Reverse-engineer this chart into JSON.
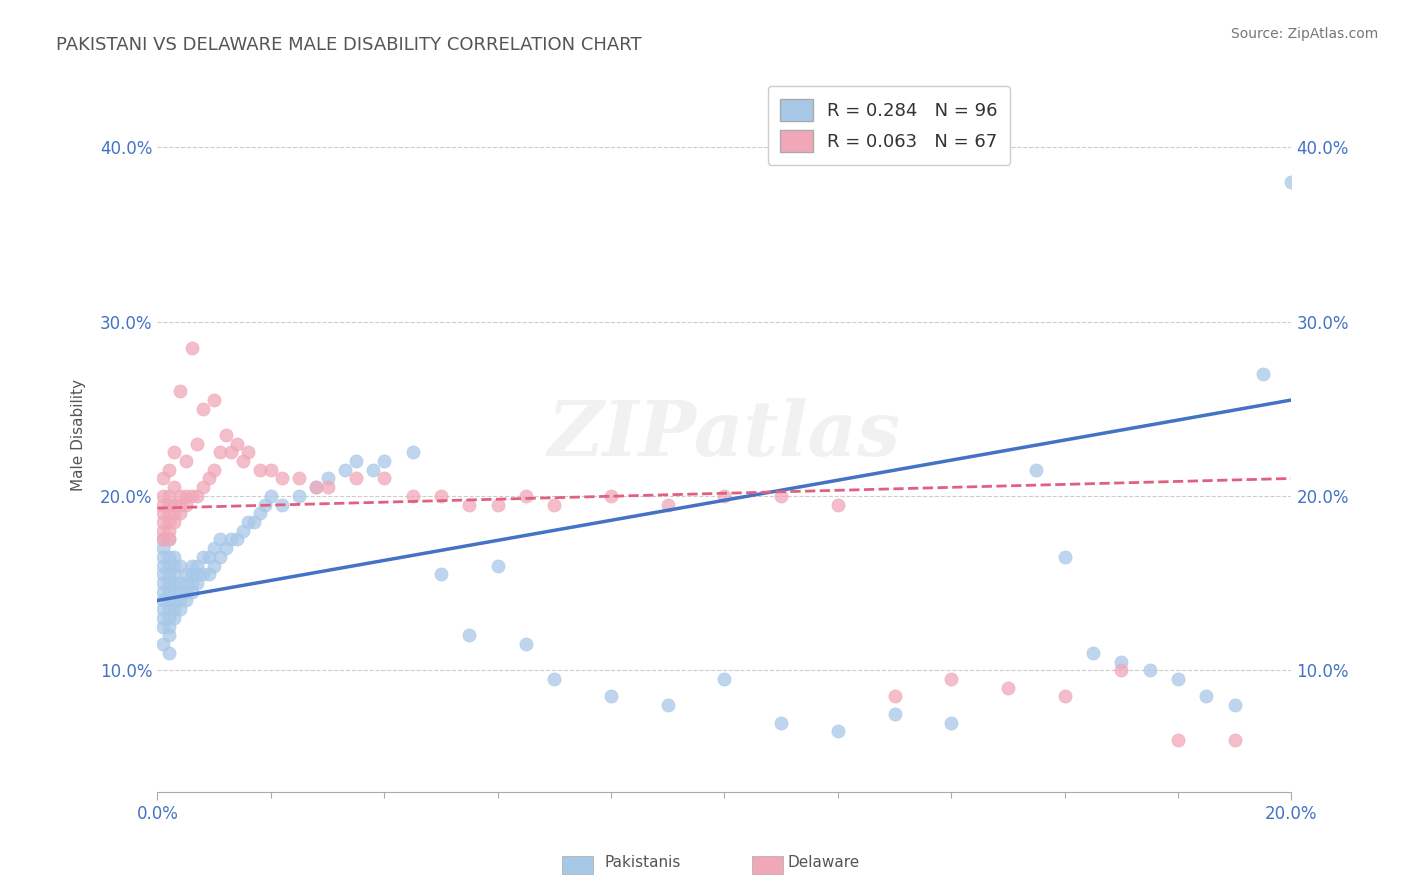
{
  "title": "PAKISTANI VS DELAWARE MALE DISABILITY CORRELATION CHART",
  "source": "Source: ZipAtlas.com",
  "ylabel": "Male Disability",
  "xlim": [
    0.0,
    0.2
  ],
  "ylim": [
    0.03,
    0.44
  ],
  "blue_R": 0.284,
  "blue_N": 96,
  "pink_R": 0.063,
  "pink_N": 67,
  "blue_color": "#a8c8e8",
  "pink_color": "#f0a8b8",
  "blue_line_color": "#4472c4",
  "pink_line_color": "#e06080",
  "title_color": "#555555",
  "axis_color": "#4472c4",
  "watermark": "ZIPatlas",
  "ytick_labels": [
    "10.0%",
    "20.0%",
    "30.0%",
    "40.0%"
  ],
  "ytick_values": [
    0.1,
    0.2,
    0.3,
    0.4
  ],
  "blue_x": [
    0.001,
    0.001,
    0.001,
    0.001,
    0.001,
    0.001,
    0.001,
    0.001,
    0.001,
    0.001,
    0.001,
    0.001,
    0.002,
    0.002,
    0.002,
    0.002,
    0.002,
    0.002,
    0.002,
    0.002,
    0.002,
    0.002,
    0.002,
    0.002,
    0.003,
    0.003,
    0.003,
    0.003,
    0.003,
    0.003,
    0.003,
    0.003,
    0.004,
    0.004,
    0.004,
    0.004,
    0.004,
    0.005,
    0.005,
    0.005,
    0.005,
    0.006,
    0.006,
    0.006,
    0.006,
    0.007,
    0.007,
    0.007,
    0.008,
    0.008,
    0.009,
    0.009,
    0.01,
    0.01,
    0.011,
    0.011,
    0.012,
    0.013,
    0.014,
    0.015,
    0.016,
    0.017,
    0.018,
    0.019,
    0.02,
    0.022,
    0.025,
    0.028,
    0.03,
    0.033,
    0.035,
    0.038,
    0.04,
    0.045,
    0.05,
    0.055,
    0.06,
    0.065,
    0.07,
    0.08,
    0.09,
    0.1,
    0.11,
    0.12,
    0.13,
    0.14,
    0.155,
    0.16,
    0.165,
    0.17,
    0.175,
    0.18,
    0.185,
    0.19,
    0.195,
    0.2
  ],
  "blue_y": [
    0.13,
    0.14,
    0.145,
    0.15,
    0.155,
    0.16,
    0.165,
    0.17,
    0.175,
    0.135,
    0.125,
    0.115,
    0.12,
    0.125,
    0.13,
    0.135,
    0.14,
    0.145,
    0.15,
    0.155,
    0.16,
    0.165,
    0.175,
    0.11,
    0.13,
    0.135,
    0.14,
    0.145,
    0.15,
    0.155,
    0.16,
    0.165,
    0.135,
    0.14,
    0.145,
    0.15,
    0.16,
    0.14,
    0.145,
    0.15,
    0.155,
    0.145,
    0.15,
    0.155,
    0.16,
    0.15,
    0.155,
    0.16,
    0.155,
    0.165,
    0.155,
    0.165,
    0.16,
    0.17,
    0.165,
    0.175,
    0.17,
    0.175,
    0.175,
    0.18,
    0.185,
    0.185,
    0.19,
    0.195,
    0.2,
    0.195,
    0.2,
    0.205,
    0.21,
    0.215,
    0.22,
    0.215,
    0.22,
    0.225,
    0.155,
    0.12,
    0.16,
    0.115,
    0.095,
    0.085,
    0.08,
    0.095,
    0.07,
    0.065,
    0.075,
    0.07,
    0.215,
    0.165,
    0.11,
    0.105,
    0.1,
    0.095,
    0.085,
    0.08,
    0.27,
    0.38
  ],
  "pink_x": [
    0.001,
    0.001,
    0.001,
    0.001,
    0.001,
    0.001,
    0.001,
    0.002,
    0.002,
    0.002,
    0.002,
    0.002,
    0.002,
    0.002,
    0.003,
    0.003,
    0.003,
    0.003,
    0.003,
    0.004,
    0.004,
    0.004,
    0.004,
    0.005,
    0.005,
    0.005,
    0.006,
    0.006,
    0.007,
    0.007,
    0.008,
    0.008,
    0.009,
    0.01,
    0.01,
    0.011,
    0.012,
    0.013,
    0.014,
    0.015,
    0.016,
    0.018,
    0.02,
    0.022,
    0.025,
    0.028,
    0.03,
    0.035,
    0.04,
    0.045,
    0.05,
    0.055,
    0.06,
    0.065,
    0.07,
    0.08,
    0.09,
    0.1,
    0.11,
    0.12,
    0.13,
    0.14,
    0.15,
    0.16,
    0.17,
    0.18,
    0.19
  ],
  "pink_y": [
    0.175,
    0.18,
    0.185,
    0.19,
    0.195,
    0.2,
    0.21,
    0.175,
    0.18,
    0.185,
    0.19,
    0.195,
    0.2,
    0.215,
    0.185,
    0.19,
    0.195,
    0.205,
    0.225,
    0.19,
    0.195,
    0.2,
    0.26,
    0.195,
    0.2,
    0.22,
    0.2,
    0.285,
    0.2,
    0.23,
    0.205,
    0.25,
    0.21,
    0.215,
    0.255,
    0.225,
    0.235,
    0.225,
    0.23,
    0.22,
    0.225,
    0.215,
    0.215,
    0.21,
    0.21,
    0.205,
    0.205,
    0.21,
    0.21,
    0.2,
    0.2,
    0.195,
    0.195,
    0.2,
    0.195,
    0.2,
    0.195,
    0.2,
    0.2,
    0.195,
    0.085,
    0.095,
    0.09,
    0.085,
    0.1,
    0.06,
    0.06
  ],
  "blue_trendline_x": [
    0.0,
    0.2
  ],
  "blue_trendline_y": [
    0.14,
    0.255
  ],
  "pink_trendline_x": [
    0.0,
    0.2
  ],
  "pink_trendline_y": [
    0.193,
    0.21
  ]
}
